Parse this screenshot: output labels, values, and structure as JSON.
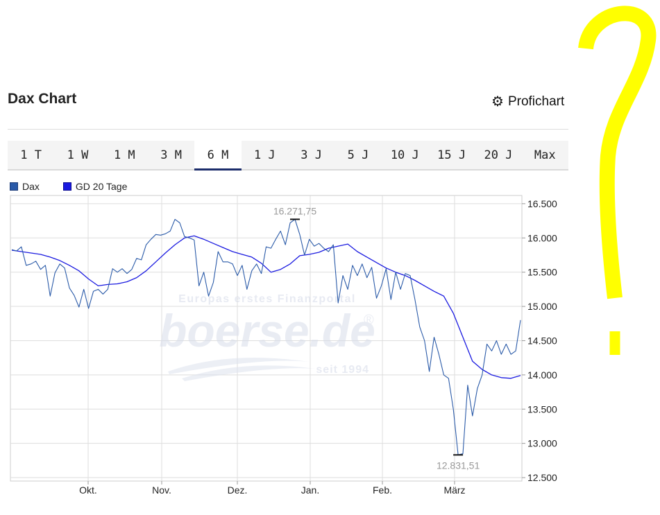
{
  "header": {
    "title": "Dax Chart",
    "profichart_label": "Profichart",
    "profichart_icon": "gear-icon"
  },
  "tabs": [
    {
      "label": "1 T",
      "active": false
    },
    {
      "label": "1 W",
      "active": false
    },
    {
      "label": "1 M",
      "active": false
    },
    {
      "label": "3 M",
      "active": false
    },
    {
      "label": "6 M",
      "active": true
    },
    {
      "label": "1 J",
      "active": false
    },
    {
      "label": "3 J",
      "active": false
    },
    {
      "label": "5 J",
      "active": false
    },
    {
      "label": "10 J",
      "active": false
    },
    {
      "label": "15 J",
      "active": false
    },
    {
      "label": "20 J",
      "active": false
    },
    {
      "label": "Max",
      "active": false
    }
  ],
  "watermark": {
    "line1": "Europas erstes Finanzportal",
    "logo": "boerse.de",
    "registered": "®",
    "line2": "seit 1994"
  },
  "annotation": {
    "question_mark": "?",
    "color": "#ffff00"
  },
  "chart_data": {
    "type": "line",
    "x_ticks": [
      "Okt.",
      "Nov.",
      "Dez.",
      "Jan.",
      "Feb.",
      "März"
    ],
    "y_ticks": [
      "16.500",
      "16.000",
      "15.500",
      "15.000",
      "14.500",
      "14.000",
      "13.500",
      "13.000",
      "12.500"
    ],
    "ylim": [
      12450,
      16620
    ],
    "grid": true,
    "legend_position": "top-left",
    "colors": {
      "dax": "#2a5aa8",
      "gd20": "#1a1ae0",
      "grid": "#dddddd",
      "marker_label": "#999999"
    },
    "max_marker": {
      "label": "16.271,75",
      "value": 16271.75
    },
    "min_marker": {
      "label": "12.831,51",
      "value": 12831.51
    },
    "series": [
      {
        "name": "Dax",
        "values": [
          15830,
          15810,
          15870,
          15600,
          15620,
          15660,
          15540,
          15600,
          15150,
          15490,
          15620,
          15560,
          15270,
          15160,
          14990,
          15250,
          14970,
          15220,
          15250,
          15180,
          15250,
          15550,
          15500,
          15550,
          15480,
          15540,
          15700,
          15680,
          15900,
          15980,
          16050,
          16040,
          16060,
          16100,
          16271.75,
          16220,
          16020,
          16000,
          15970,
          15300,
          15500,
          15150,
          15350,
          15800,
          15650,
          15650,
          15620,
          15450,
          15600,
          15250,
          15520,
          15620,
          15480,
          15870,
          15850,
          15980,
          16100,
          15900,
          16220,
          16271.75,
          16050,
          15750,
          15980,
          15880,
          15920,
          15850,
          15800,
          15900,
          15050,
          15450,
          15250,
          15600,
          15450,
          15620,
          15420,
          15570,
          15120,
          15300,
          15550,
          15100,
          15500,
          15250,
          15480,
          15450,
          15100,
          14700,
          14500,
          14050,
          14550,
          14300,
          14000,
          13950,
          13500,
          12831.51,
          12850,
          13850,
          13400,
          13800,
          14000,
          14450,
          14350,
          14500,
          14300,
          14450,
          14300,
          14350,
          14800
        ]
      },
      {
        "name": "GD 20 Tage",
        "values": [
          15820,
          15800,
          15780,
          15760,
          15720,
          15670,
          15600,
          15520,
          15400,
          15300,
          15320,
          15330,
          15360,
          15420,
          15520,
          15650,
          15780,
          15900,
          16000,
          16030,
          15980,
          15920,
          15860,
          15800,
          15760,
          15720,
          15630,
          15500,
          15540,
          15620,
          15740,
          15760,
          15790,
          15850,
          15880,
          15910,
          15800,
          15720,
          15640,
          15560,
          15500,
          15450,
          15380,
          15300,
          15220,
          15150,
          14900,
          14550,
          14200,
          14080,
          14000,
          13960,
          13950,
          13990
        ]
      }
    ]
  }
}
